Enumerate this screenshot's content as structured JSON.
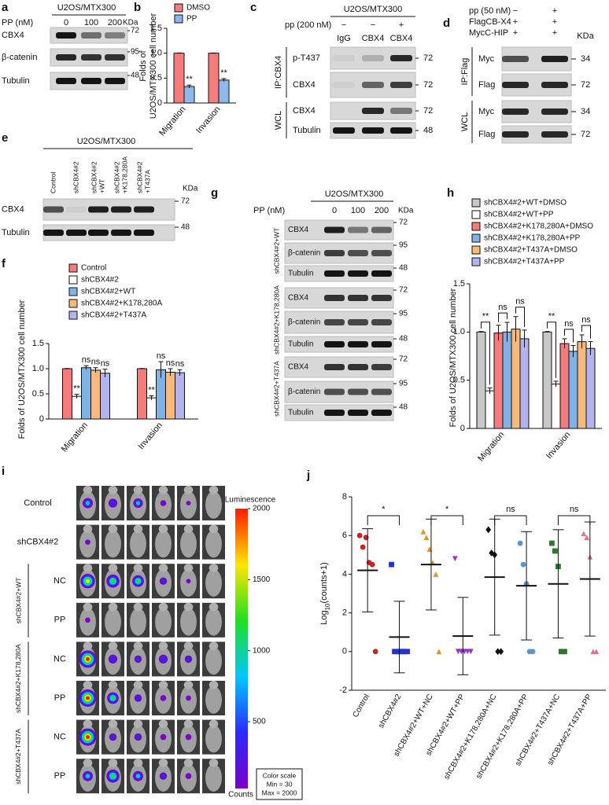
{
  "panels": {
    "a": {
      "label": "a",
      "header": "U2OS/MTX300",
      "treatment": "PP (nM)",
      "lanes": [
        "0",
        "100",
        "200"
      ],
      "kda_label": "KDa",
      "rows": [
        {
          "name": "CBX4",
          "kda": "72"
        },
        {
          "name": "β-catenin",
          "kda": "95"
        },
        {
          "name": "Tubulin",
          "kda": "48"
        }
      ]
    },
    "c": {
      "label": "c",
      "header": "U2OS/MTX300",
      "treatments": [
        {
          "name": "pp (200 nM)",
          "signs": [
            "−",
            "−",
            "+"
          ]
        }
      ],
      "lanes": [
        "IgG",
        "CBX4",
        "CBX4"
      ],
      "groups": [
        {
          "name": "IP:CBX4",
          "rows": [
            {
              "name": "p-T437",
              "kda": "72"
            },
            {
              "name": "CBX4",
              "kda": "72"
            }
          ]
        },
        {
          "name": "WCL",
          "rows": [
            {
              "name": "CBX4",
              "kda": "72"
            },
            {
              "name": "Tubulin",
              "kda": "48"
            }
          ]
        }
      ]
    },
    "d": {
      "label": "d",
      "treatments": [
        {
          "name": "pp (50 nM)",
          "signs": [
            "−",
            "+"
          ]
        },
        {
          "name": "FlagCB-X4",
          "signs": [
            "+",
            "+"
          ]
        },
        {
          "name": "MycC-HIP",
          "signs": [
            "+",
            "+"
          ]
        }
      ],
      "kda_label": "KDa",
      "groups": [
        {
          "name": "IP:Flag",
          "rows": [
            {
              "name": "Myc",
              "kda": "34"
            },
            {
              "name": "Flag",
              "kda": "72"
            }
          ]
        },
        {
          "name": "WCL",
          "rows": [
            {
              "name": "Myc",
              "kda": "34"
            },
            {
              "name": "Flag",
              "kda": "72"
            }
          ]
        }
      ]
    },
    "e": {
      "label": "e",
      "header": "U2OS/MTX300",
      "lanes": [
        [
          "Control"
        ],
        [
          "shCBX4#2"
        ],
        [
          "shCBX4#2",
          "+WT"
        ],
        [
          "shCBX4#2",
          "+K178,280A"
        ],
        [
          "shCBX4#2",
          "+T437A"
        ]
      ],
      "kda_label": "KDa",
      "rows": [
        {
          "name": "CBX4",
          "kda": "72"
        },
        {
          "name": "Tubulin",
          "kda": "48"
        }
      ]
    },
    "g": {
      "label": "g",
      "header": "U2OS/MTX300",
      "treatment": "PP (nM)",
      "lanes": [
        "0",
        "100",
        "200"
      ],
      "kda_label": "KDa",
      "groups": [
        {
          "name": "shCBX4#2+WT",
          "rows": [
            {
              "name": "CBX4",
              "kda": "72"
            },
            {
              "name": "β-catenin",
              "kda": "95"
            },
            {
              "name": "Tubulin",
              "kda": "48"
            }
          ]
        },
        {
          "name": "shCBX4#2+K178,280A",
          "rows": [
            {
              "name": "CBX4",
              "kda": "72"
            },
            {
              "name": "β-catenin",
              "kda": "95"
            },
            {
              "name": "Tubulin",
              "kda": "48"
            }
          ]
        },
        {
          "name": "shCBX4#2+T437A",
          "rows": [
            {
              "name": "CBX4",
              "kda": "72"
            },
            {
              "name": "β-catenin",
              "kda": "95"
            },
            {
              "name": "Tubulin",
              "kda": "48"
            }
          ]
        }
      ]
    },
    "i": {
      "label": "i",
      "rows": [
        "Control",
        "shCBX4#2"
      ],
      "groups": [
        {
          "name": "shCBX4#2+WT",
          "rows": [
            "NC",
            "PP"
          ]
        },
        {
          "name": "shCBX4#2+K178,280A",
          "rows": [
            "NC",
            "PP"
          ]
        },
        {
          "name": "shCBX4#2+T437A",
          "rows": [
            "NC",
            "PP"
          ]
        }
      ],
      "colorbar": {
        "title": "Luminescence",
        "range": [
          30,
          2000
        ],
        "ticks": [
          2000,
          1500,
          1000,
          500
        ],
        "unit": "Counts",
        "scale_title": "Color scale",
        "min_label": "Min = 30",
        "max_label": "Max = 2000"
      }
    }
  },
  "chart_data": [
    {
      "type": "bar",
      "label": "b",
      "ylabel": [
        "Folds of",
        "U2OS/MTX300 cell number"
      ],
      "categories": [
        "Migration",
        "Invasion"
      ],
      "ylim": [
        0,
        1.5
      ],
      "yticks": [
        0,
        0.5,
        {
          "value": 1,
          "label": "1.0"
        },
        1.5
      ],
      "legend": "top",
      "series": [
        {
          "name": "DMSO",
          "color": "#f47c7c",
          "values": [
            1,
            1
          ],
          "errors": [
            0.005,
            0.005
          ]
        },
        {
          "name": "PP",
          "color": "#8cb8ec",
          "values": [
            0.33,
            0.46
          ],
          "errors": [
            0.03,
            0.03
          ],
          "annotations": [
            "**",
            "**"
          ]
        }
      ]
    },
    {
      "type": "bar",
      "label": "f",
      "ylabel": "Folds of U2OS/MTX300 cell number",
      "categories": [
        "Migration",
        "Invasion"
      ],
      "ylim": [
        0,
        1.5
      ],
      "yticks": [
        0,
        0.5,
        {
          "value": 1,
          "label": "1.0"
        },
        1.5
      ],
      "legend": "top",
      "series": [
        {
          "name": "Control",
          "color": "#f47c7c",
          "values": [
            1,
            1
          ],
          "errors": [
            0.005,
            0.005
          ]
        },
        {
          "name": "shCBX4#2",
          "color": "#ffffff",
          "values": [
            0.45,
            0.42
          ],
          "errors": [
            0.04,
            0.04
          ],
          "annotations": [
            "**",
            "**"
          ]
        },
        {
          "name": "shCBX4#2+WT",
          "color": "#7fb2e5",
          "values": [
            1.02,
            0.98
          ],
          "errors": [
            0.04,
            0.16
          ],
          "annotations": [
            "ns",
            "ns"
          ]
        },
        {
          "name": "shCBX4#2+K178,280A",
          "color": "#f8b97a",
          "values": [
            0.97,
            0.93
          ],
          "errors": [
            0.05,
            0.07
          ],
          "annotations": [
            "ns",
            "ns"
          ]
        },
        {
          "name": "shCBX4#2+T437A",
          "color": "#b3b3f0",
          "values": [
            0.91,
            0.92
          ],
          "errors": [
            0.08,
            0.06
          ],
          "annotations": [
            "ns",
            "ns"
          ]
        }
      ]
    },
    {
      "type": "bar",
      "label": "h",
      "ylabel": "Folds of U2OS/MTX300 cell number",
      "categories": [
        "Migration",
        "Invasion"
      ],
      "ylim": [
        0,
        1.5
      ],
      "yticks": [
        0,
        0.5,
        {
          "value": 1,
          "label": "1.0"
        },
        1.5
      ],
      "legend": "top",
      "brackets": [
        [
          "**",
          "ns",
          "ns"
        ],
        [
          "**",
          "ns",
          "ns"
        ]
      ],
      "series": [
        {
          "name": "shCBX4#2+WT+DMSO",
          "color": "#c8c8c8",
          "values": [
            1,
            1
          ],
          "errors": [
            0.005,
            0.005
          ]
        },
        {
          "name": "shCBX4#2+WT+PP",
          "color": "#ffffff",
          "values": [
            0.39,
            0.46
          ],
          "errors": [
            0.03,
            0.03
          ]
        },
        {
          "name": "shCBX4#2+K178,280A+DMSO",
          "color": "#f47c7c",
          "values": [
            0.99,
            0.88
          ],
          "errors": [
            0.08,
            0.05
          ]
        },
        {
          "name": "shCBX4#2+K178,280A+PP",
          "color": "#7fb2e5",
          "values": [
            1,
            0.8
          ],
          "errors": [
            0.1,
            0.06
          ]
        },
        {
          "name": "shCBX4#2+T437A+DMSO",
          "color": "#f8b97a",
          "values": [
            1.03,
            0.9
          ],
          "errors": [
            0.13,
            0.07
          ]
        },
        {
          "name": "shCBX4#2+T437A+PP",
          "color": "#b3b3f0",
          "values": [
            0.93,
            0.83
          ],
          "errors": [
            0.09,
            0.07
          ]
        }
      ]
    },
    {
      "type": "scatter",
      "label": "j",
      "ylabel": [
        "Log",
        "10",
        "(counts+1)"
      ],
      "categories": [
        "Control",
        "shCBX4#2",
        "shCBX4#2+WT+NC",
        "shCBX4#2+WT+PP",
        "shCBX4#2+K178,280A+NC",
        "shCBX4#2+K178,280A+PP",
        "shCBX4#2+T437A+NC",
        "shCBX4#2+T437A+PP"
      ],
      "ylim": [
        -2,
        8
      ],
      "yticks": [
        -2,
        0,
        2,
        4,
        6,
        8
      ],
      "colors": [
        "#cc2222",
        "#2233cc",
        "#e89020",
        "#9933cc",
        "#111111",
        "#5599cc",
        "#2a7a2a",
        "#e07090"
      ],
      "markers": [
        "circle",
        "square",
        "triangle",
        "triangle-down",
        "diamond",
        "circle",
        "square",
        "triangle"
      ],
      "points": [
        [
          6,
          5.4,
          5.9,
          4.6,
          4.5,
          0
        ],
        [
          4.5,
          0,
          0,
          0,
          0,
          0
        ],
        [
          6.2,
          5.9,
          5.3,
          4.6,
          4,
          0
        ],
        [
          4.8,
          0,
          0,
          0,
          0,
          0
        ],
        [
          6.3,
          5.1,
          5,
          0,
          0
        ],
        [
          5.6,
          4.5,
          3.5,
          0,
          0
        ],
        [
          5.6,
          5.2,
          4.4,
          0,
          0
        ],
        [
          6.1,
          5.9,
          4.9,
          0,
          0
        ]
      ],
      "means": [
        4.2,
        0.75,
        4.5,
        0.8,
        3.85,
        3.4,
        3.5,
        3.75
      ],
      "sds": [
        2.15,
        1.85,
        2.35,
        2,
        3,
        2.8,
        2.8,
        2.95
      ],
      "brackets": [
        "*",
        "*",
        "ns",
        "ns"
      ]
    }
  ]
}
